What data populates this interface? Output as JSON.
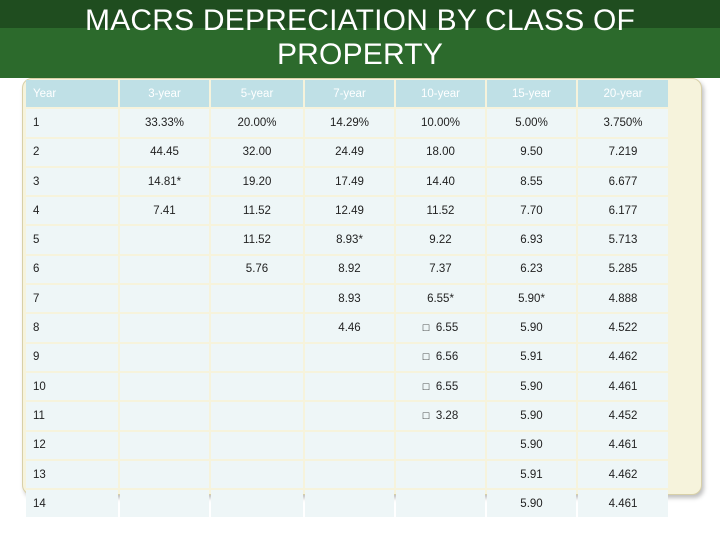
{
  "slide": {
    "title_line1": "MACRS DEPRECIATION BY CLASS OF",
    "title_line2": "PROPERTY"
  },
  "table": {
    "headers": [
      "Year",
      "3-year",
      "5-year",
      "7-year",
      "10-year",
      "15-year",
      "20-year"
    ],
    "rows": [
      [
        "1",
        "33.33%",
        "20.00%",
        "14.29%",
        "10.00%",
        "5.00%",
        "3.750%"
      ],
      [
        "2",
        "44.45",
        "32.00",
        "24.49",
        "18.00",
        "9.50",
        "7.219"
      ],
      [
        "3",
        "14.81*",
        "19.20",
        "17.49",
        "14.40",
        "8.55",
        "6.677"
      ],
      [
        "4",
        "7.41",
        "11.52",
        "12.49",
        "11.52",
        "7.70",
        "6.177"
      ],
      [
        "5",
        "",
        "11.52",
        "8.93*",
        "9.22",
        "6.93",
        "5.713"
      ],
      [
        "6",
        "",
        "5.76",
        "8.92",
        "7.37",
        "6.23",
        "5.285"
      ],
      [
        "7",
        "",
        "",
        "8.93",
        "6.55*",
        "5.90*",
        "4.888"
      ],
      [
        "8",
        "",
        "",
        "4.46",
        "  6.55",
        "5.90",
        "4.522"
      ],
      [
        "9",
        "",
        "",
        "",
        "  6.56",
        "5.91",
        "4.462"
      ],
      [
        "10",
        "",
        "",
        "",
        "  6.55",
        "5.90",
        "4.461"
      ],
      [
        "11",
        "",
        "",
        "",
        "  3.28",
        "5.90",
        "4.452"
      ],
      [
        "12",
        "",
        "",
        "",
        "",
        "5.90",
        "4.461"
      ],
      [
        "13",
        "",
        "",
        "",
        "",
        "5.91",
        "4.462"
      ],
      [
        "14",
        "",
        "",
        "",
        "",
        "5.90",
        "4.461"
      ]
    ],
    "missing_glyph_rows": [
      7,
      8,
      9,
      10
    ]
  },
  "colors": {
    "title_band": "#2c6a2c",
    "header_fill": "#bfe0e6",
    "cell_fill": "#eef6f7",
    "frame_fill": "#f6f3dc"
  }
}
